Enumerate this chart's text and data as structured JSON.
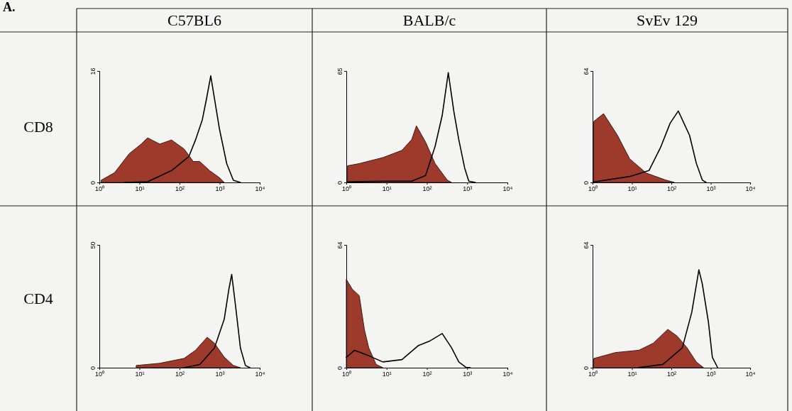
{
  "chart_data": [
    {
      "type": "area",
      "title": "C57BL6",
      "ylabel": "CD8",
      "annotations": [
        "A."
      ],
      "log": "x",
      "xlim": [
        1,
        10000
      ],
      "xticks": [
        {
          "value": 1,
          "label": "10⁰"
        },
        {
          "value": 10,
          "label": "10¹"
        },
        {
          "value": 100,
          "label": "10²"
        },
        {
          "value": 1000,
          "label": "10³"
        },
        {
          "value": 10000,
          "label": "10⁴"
        }
      ],
      "ylim": [
        0,
        16
      ],
      "yticks": [
        0,
        16
      ],
      "series": [
        {
          "type": "area",
          "color": "#9e3a2c",
          "x": [
            1.1,
            2.4,
            5.5,
            11,
            16,
            32,
            63,
            130,
            220,
            320,
            560,
            980,
            1300
          ],
          "values": [
            0.3,
            1.4,
            4.1,
            5.5,
            6.4,
            5.5,
            6.1,
            4.8,
            3,
            3,
            1.7,
            0.7,
            0
          ]
        },
        {
          "type": "line",
          "color": "#000000",
          "x": [
            4.2,
            16,
            63,
            170,
            250,
            370,
            470,
            600,
            980,
            1500,
            2200,
            3300
          ],
          "values": [
            0,
            0.1,
            1.7,
            3.7,
            6.1,
            9,
            12,
            15.3,
            7.8,
            2.7,
            0.3,
            0
          ]
        }
      ]
    },
    {
      "type": "area",
      "title": "BALB/c",
      "log": "x",
      "xlim": [
        1,
        10000
      ],
      "xticks": [
        {
          "value": 1,
          "label": "10⁰"
        },
        {
          "value": 10,
          "label": "10¹"
        },
        {
          "value": 100,
          "label": "10²"
        },
        {
          "value": 1000,
          "label": "10³"
        },
        {
          "value": 10000,
          "label": "10⁴"
        }
      ],
      "ylim": [
        0,
        65
      ],
      "yticks": [
        0,
        65
      ],
      "series": [
        {
          "type": "area",
          "color": "#9e3a2c",
          "x": [
            1.07,
            2.1,
            8.1,
            24,
            42,
            55,
            93,
            160,
            320,
            410
          ],
          "values": [
            9.7,
            11,
            14.5,
            18.7,
            25,
            33,
            23.5,
            11,
            1.4,
            0
          ]
        },
        {
          "type": "line",
          "color": "#000000",
          "x": [
            1.07,
            8.1,
            42,
            93,
            160,
            240,
            340,
            470,
            620,
            870,
            1100,
            1600
          ],
          "values": [
            0.3,
            0.7,
            0.7,
            4,
            21,
            39,
            64,
            41,
            25,
            8.3,
            0.7,
            0
          ]
        }
      ]
    },
    {
      "type": "area",
      "title": "SvEv 129",
      "log": "x",
      "xlim": [
        1,
        10000
      ],
      "xticks": [
        {
          "value": 1,
          "label": "10⁰"
        },
        {
          "value": 10,
          "label": "10¹"
        },
        {
          "value": 100,
          "label": "10²"
        },
        {
          "value": 1000,
          "label": "10³"
        },
        {
          "value": 10000,
          "label": "10⁴"
        }
      ],
      "ylim": [
        0,
        64
      ],
      "yticks": [
        0,
        64
      ],
      "series": [
        {
          "type": "area",
          "color": "#9e3a2c",
          "x": [
            1.07,
            1.9,
            4.3,
            8.7,
            23,
            71,
            120
          ],
          "values": [
            35,
            39.5,
            27,
            13.6,
            5.4,
            1.4,
            0
          ]
        },
        {
          "type": "line",
          "color": "#000000",
          "x": [
            1.07,
            8.7,
            27,
            53,
            93,
            150,
            290,
            430,
            610,
            760
          ],
          "values": [
            0.3,
            3.4,
            6.8,
            20,
            34,
            41,
            27,
            11,
            1.4,
            0
          ]
        }
      ]
    },
    {
      "type": "area",
      "ylabel": "CD4",
      "log": "x",
      "xlim": [
        1,
        10000
      ],
      "xticks": [
        {
          "value": 1,
          "label": "10⁰"
        },
        {
          "value": 10,
          "label": "10¹"
        },
        {
          "value": 100,
          "label": "10²"
        },
        {
          "value": 1000,
          "label": "10³"
        },
        {
          "value": 10000,
          "label": "10⁴"
        }
      ],
      "ylim": [
        0,
        50
      ],
      "yticks": [
        0,
        50
      ],
      "series": [
        {
          "type": "area",
          "color": "#9e3a2c",
          "x": [
            8.3,
            32,
            130,
            250,
            490,
            740,
            1300,
            2200,
            3300
          ],
          "values": [
            0.9,
            1.8,
            3.8,
            7.1,
            12.4,
            10,
            4.3,
            0.9,
            0
          ]
        },
        {
          "type": "line",
          "color": "#000000",
          "x": [
            130,
            320,
            740,
            1300,
            1700,
            2000,
            2500,
            3300,
            4400,
            5700
          ],
          "values": [
            0,
            1.3,
            8,
            19.7,
            32,
            38,
            25,
            8,
            0.9,
            0
          ]
        }
      ]
    },
    {
      "type": "area",
      "log": "x",
      "xlim": [
        1,
        10000
      ],
      "xticks": [
        {
          "value": 1,
          "label": "10⁰"
        },
        {
          "value": 10,
          "label": "10¹"
        },
        {
          "value": 100,
          "label": "10²"
        },
        {
          "value": 1000,
          "label": "10³"
        },
        {
          "value": 10000,
          "label": "10⁴"
        }
      ],
      "ylim": [
        0,
        64
      ],
      "yticks": [
        0,
        64
      ],
      "series": [
        {
          "type": "area",
          "color": "#9e3a2c",
          "x": [
            1,
            1.4,
            2.1,
            2.8,
            3.6,
            5.5,
            8.1
          ],
          "values": [
            46,
            41,
            37.5,
            20,
            10.4,
            1.7,
            0
          ]
        },
        {
          "type": "line",
          "color": "#000000",
          "x": [
            1,
            1.6,
            3.2,
            8.1,
            24,
            62,
            120,
            240,
            410,
            620,
            930,
            1200
          ],
          "values": [
            5.4,
            9.1,
            6.7,
            3,
            4.2,
            11.6,
            14,
            17.8,
            10.4,
            3,
            0.2,
            0
          ]
        }
      ]
    },
    {
      "type": "area",
      "log": "x",
      "xlim": [
        1,
        10000
      ],
      "xticks": [
        {
          "value": 1,
          "label": "10⁰"
        },
        {
          "value": 10,
          "label": "10¹"
        },
        {
          "value": 100,
          "label": "10²"
        },
        {
          "value": 1000,
          "label": "10³"
        },
        {
          "value": 10000,
          "label": "10⁴"
        }
      ],
      "ylim": [
        0,
        64
      ],
      "yticks": [
        0,
        64
      ],
      "series": [
        {
          "type": "area",
          "color": "#9e3a2c",
          "x": [
            1.07,
            3.8,
            15,
            35,
            81,
            140,
            250,
            430,
            660
          ],
          "values": [
            4.8,
            7.9,
            9.1,
            12.8,
            20,
            16.5,
            10.4,
            3,
            0
          ]
        },
        {
          "type": "line",
          "color": "#000000",
          "x": [
            15,
            61,
            190,
            330,
            500,
            610,
            870,
            1100,
            1500
          ],
          "values": [
            0.1,
            1.7,
            10.4,
            28.9,
            51,
            43.7,
            24,
            5.4,
            0
          ]
        }
      ]
    }
  ]
}
